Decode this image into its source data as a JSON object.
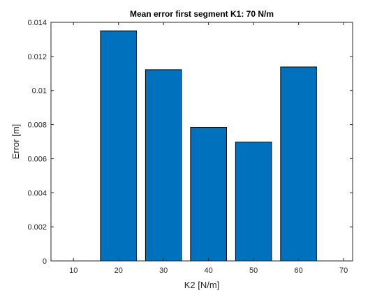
{
  "chart_data": {
    "type": "bar",
    "title": "Mean error first segment K1: 70 N/m",
    "xlabel": "K2 [N/m]",
    "ylabel": "Error [m]",
    "x": [
      20,
      30,
      40,
      50,
      60
    ],
    "values": [
      0.0135,
      0.01122,
      0.00784,
      0.00697,
      0.01138
    ],
    "xlim": [
      5,
      72
    ],
    "ylim": [
      0,
      0.014
    ],
    "xticks": [
      "10",
      "20",
      "30",
      "40",
      "50",
      "60",
      "70"
    ],
    "xtick_values": [
      10,
      20,
      30,
      40,
      50,
      60,
      70
    ],
    "yticks": [
      "0",
      "0.002",
      "0.004",
      "0.006",
      "0.008",
      "0.01",
      "0.012",
      "0.014"
    ],
    "ytick_values": [
      0,
      0.002,
      0.004,
      0.006,
      0.008,
      0.01,
      0.012,
      0.014
    ],
    "bar_width": 8,
    "bar_color": "#0072BD",
    "grid": false
  }
}
